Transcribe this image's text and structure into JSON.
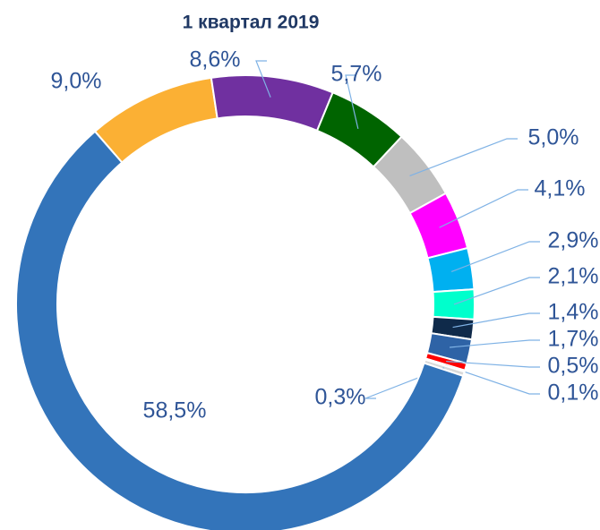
{
  "chart_data": {
    "type": "donut",
    "title": "1 квартал 2019",
    "categories": [
      null,
      null,
      null,
      null,
      null,
      null,
      null,
      null,
      null,
      null,
      null,
      null,
      null
    ],
    "values": [
      9.0,
      8.6,
      5.7,
      5.0,
      4.1,
      2.9,
      2.1,
      1.4,
      1.7,
      0.5,
      0.1,
      0.3,
      58.5
    ],
    "value_labels": [
      "9,0%",
      "8,6%",
      "5,7%",
      "5,0%",
      "4,1%",
      "2,9%",
      "2,1%",
      "1,4%",
      "1,7%",
      "0,5%",
      "0,1%",
      "0,3%",
      "58,5%"
    ],
    "colors": [
      "#FBB034",
      "#7030A0",
      "#006400",
      "#BFBFBF",
      "#FF00FF",
      "#00B0F0",
      "#00FFCC",
      "#0F2A4A",
      "#2E63A6",
      "#FF0000",
      "#DDEBF7",
      "#D9D9D9",
      "#3374BA"
    ]
  }
}
